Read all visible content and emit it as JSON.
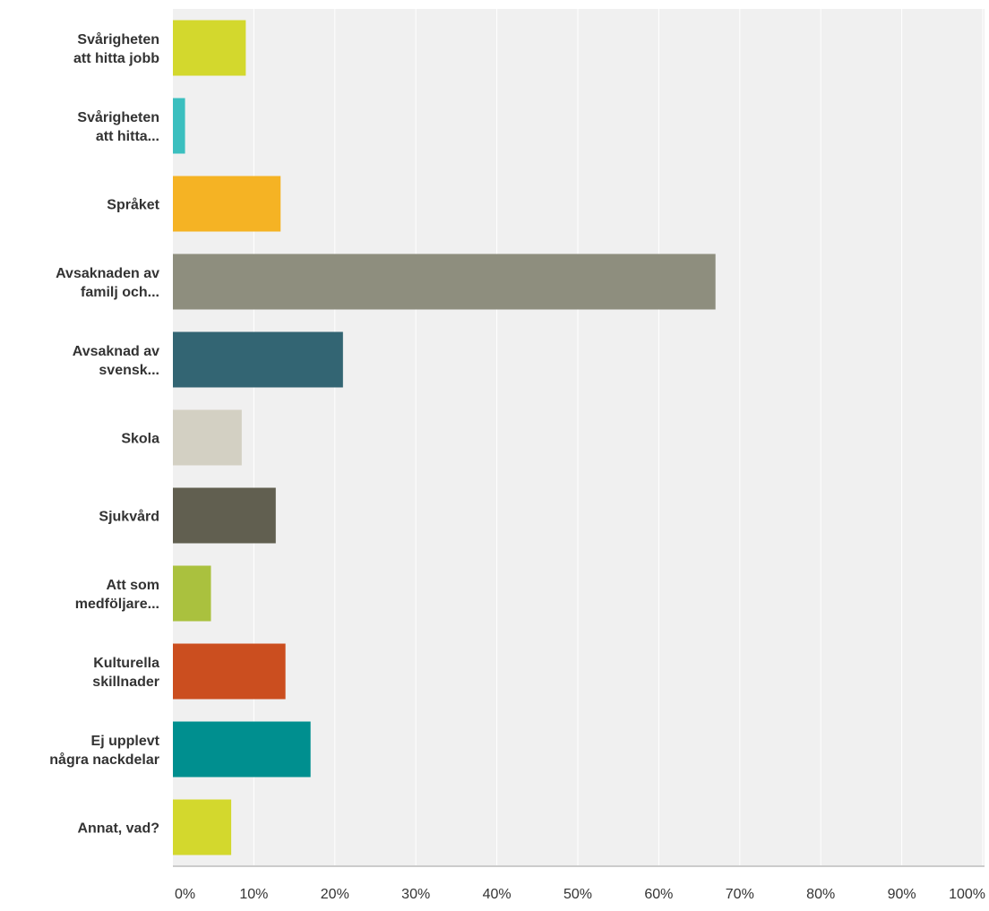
{
  "chart_data": {
    "type": "bar",
    "orientation": "horizontal",
    "categories": [
      [
        "Svårigheten",
        "att hitta jobb"
      ],
      [
        "Svårigheten",
        "att hitta..."
      ],
      [
        "Språket"
      ],
      [
        "Avsaknaden av",
        "familj och..."
      ],
      [
        "Avsaknad av",
        "svensk..."
      ],
      [
        "Skola"
      ],
      [
        "Sjukvård"
      ],
      [
        "Att som",
        "medföljare..."
      ],
      [
        "Kulturella",
        "skillnader"
      ],
      [
        "Ej upplevt",
        "några nackdelar"
      ],
      [
        "Annat, vad?"
      ]
    ],
    "values": [
      9.0,
      1.5,
      13.3,
      67.0,
      21.0,
      8.5,
      12.7,
      4.7,
      13.9,
      17.0,
      7.2
    ],
    "bar_colors": [
      "#d3d82d",
      "#3bbfbf",
      "#f5b324",
      "#8e8e7e",
      "#336573",
      "#d3d0c3",
      "#615f50",
      "#aac13e",
      "#cb4e1f",
      "#008f8f",
      "#d3d82d"
    ],
    "xlim": [
      0,
      100
    ],
    "tick_values": [
      0,
      10,
      20,
      30,
      40,
      50,
      60,
      70,
      80,
      90,
      100
    ],
    "tick_labels": [
      "0%",
      "10%",
      "20%",
      "30%",
      "40%",
      "50%",
      "60%",
      "70%",
      "80%",
      "90%",
      "100%"
    ],
    "grid": true,
    "plot_background": "#f0f0f0",
    "grid_color": "#ffffff",
    "axis_color": "#cccccc",
    "label_color": "#333333"
  }
}
